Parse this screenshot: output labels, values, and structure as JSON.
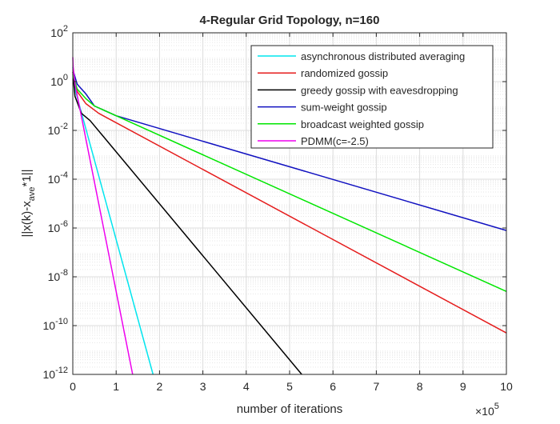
{
  "chart_data": {
    "type": "line",
    "title": "4-Regular Grid Topology, n=160",
    "xlabel": "number of iterations",
    "ylabel": "||x(k)-x",
    "ylabel_subscript": "ave",
    "ylabel_suffix": "*1||",
    "x_multiplier_label": "×10",
    "x_multiplier_exponent": "5",
    "xlim": [
      0,
      10
    ],
    "ylim_exponent": [
      -12,
      2
    ],
    "yscale": "log",
    "grid": true,
    "minor_grid": true,
    "legend_position": "top-right",
    "x_ticks": [
      "0",
      "1",
      "2",
      "3",
      "4",
      "5",
      "6",
      "7",
      "8",
      "9",
      "10"
    ],
    "y_tick_exponents": [
      "2",
      "0",
      "-2",
      "-4",
      "-6",
      "-8",
      "-10",
      "-12"
    ],
    "y_tick_base": "10",
    "series": [
      {
        "name": "asynchronous distributed averaging",
        "color": "#00e5ee",
        "x": [
          0,
          0.05,
          1.85
        ],
        "y_log10": [
          0.6,
          -0.3,
          -12
        ]
      },
      {
        "name": "randomized gossip",
        "color": "#e51c1c",
        "x": [
          0,
          0.1,
          0.3,
          0.6,
          10
        ],
        "y_log10": [
          0.3,
          -0.4,
          -0.9,
          -1.3,
          -10.3
        ]
      },
      {
        "name": "greedy gossip with eavesdropping",
        "color": "#000000",
        "x": [
          0,
          0.05,
          0.2,
          0.4,
          5.28
        ],
        "y_log10": [
          0.4,
          -0.6,
          -1.3,
          -1.6,
          -12
        ]
      },
      {
        "name": "sum-weight gossip",
        "color": "#1010c0",
        "x": [
          0,
          0.1,
          0.3,
          0.5,
          1,
          10
        ],
        "y_log10": [
          0.5,
          -0.1,
          -0.5,
          -1.0,
          -1.4,
          -6.1
        ]
      },
      {
        "name": "broadcast weighted gossip",
        "color": "#00e600",
        "x": [
          0,
          0.1,
          0.3,
          0.5,
          1,
          10
        ],
        "y_log10": [
          0.3,
          -0.3,
          -0.7,
          -1.0,
          -1.4,
          -8.6
        ]
      },
      {
        "name": "PDMM(c=-2.5)",
        "color": "#ee00ee",
        "x": [
          0,
          0.01,
          0.05,
          1.38
        ],
        "y_log10": [
          1.0,
          0.6,
          -0.1,
          -12
        ]
      }
    ]
  }
}
